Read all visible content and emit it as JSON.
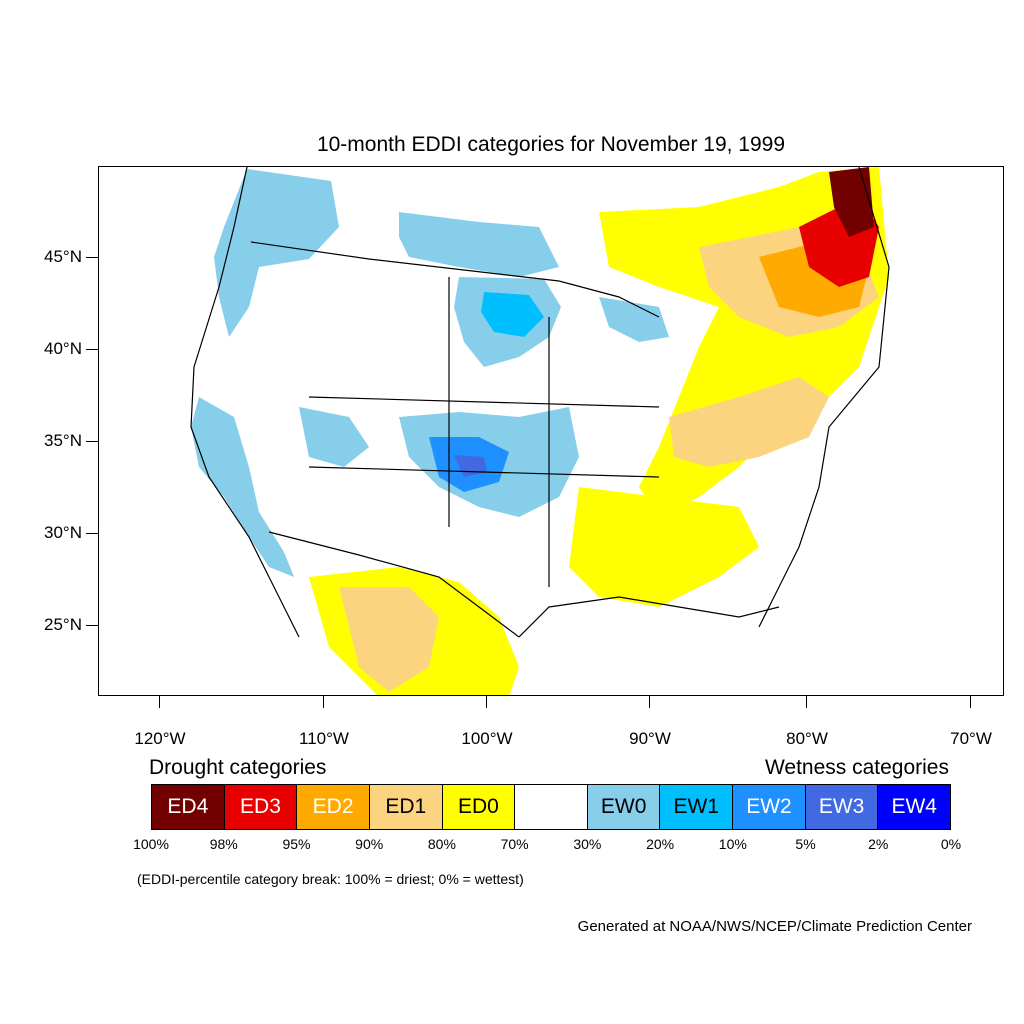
{
  "title": "10-month EDDI categories for November 19, 1999",
  "latitude_labels": [
    "45°N",
    "40°N",
    "35°N",
    "30°N",
    "25°N"
  ],
  "longitude_labels": [
    "120°W",
    "110°W",
    "100°W",
    "90°W",
    "80°W",
    "70°W"
  ],
  "legend": {
    "drought_heading": "Drought categories",
    "wetness_heading": "Wetness categories",
    "categories": [
      {
        "label": "ED4",
        "color": "#730000",
        "text_color": "#ffffff"
      },
      {
        "label": "ED3",
        "color": "#e60000",
        "text_color": "#ffffff"
      },
      {
        "label": "ED2",
        "color": "#ffaa00",
        "text_color": "#ffffff"
      },
      {
        "label": "ED1",
        "color": "#fcd37f",
        "text_color": "#000000"
      },
      {
        "label": "ED0",
        "color": "#ffff00",
        "text_color": "#000000"
      },
      {
        "label": "",
        "color": "#ffffff",
        "text_color": "#000000"
      },
      {
        "label": "EW0",
        "color": "#87ceeb",
        "text_color": "#000000"
      },
      {
        "label": "EW1",
        "color": "#00bfff",
        "text_color": "#000000"
      },
      {
        "label": "EW2",
        "color": "#1e90ff",
        "text_color": "#ffffff"
      },
      {
        "label": "EW3",
        "color": "#4169e1",
        "text_color": "#ffffff"
      },
      {
        "label": "EW4",
        "color": "#0000ff",
        "text_color": "#ffffff"
      }
    ],
    "breaks": [
      "100%",
      "98%",
      "95%",
      "90%",
      "80%",
      "70%",
      "30%",
      "20%",
      "10%",
      "5%",
      "2%",
      "0%"
    ]
  },
  "note": "(EDDI-percentile category break: 100% = driest; 0% = wettest)",
  "credit": "Generated at NOAA/NWS/NCEP/Climate Prediction Center"
}
